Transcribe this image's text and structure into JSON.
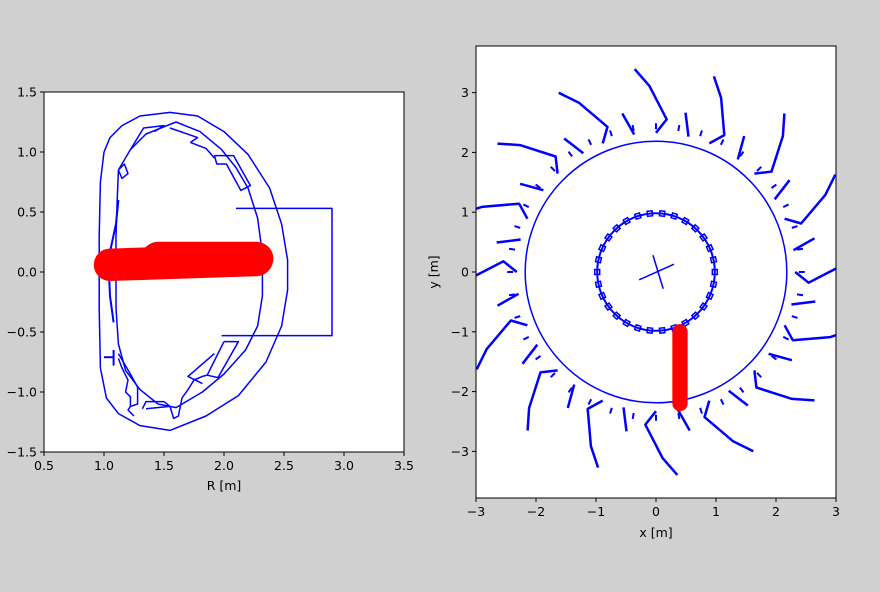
{
  "figure": {
    "background": "#d0d0d0",
    "axes_background": "#ffffff",
    "wall_color": "#0000ff",
    "beam_color": "#ff0000"
  },
  "chart_data": [
    {
      "type": "line",
      "view": "poloidal-cross-section",
      "xlabel": "R [m]",
      "ylabel": "",
      "xlim": [
        0.5,
        3.5
      ],
      "ylim": [
        -1.5,
        1.5
      ],
      "xticks": [
        "0.5",
        "1.0",
        "1.5",
        "2.0",
        "2.5",
        "3.0",
        "3.5"
      ],
      "yticks": [
        "1.5",
        "1.0",
        "0.5",
        "0.0",
        "−0.5",
        "−1.0",
        "−1.5"
      ],
      "xtick_values": [
        0.5,
        1.0,
        1.5,
        2.0,
        2.5,
        3.0,
        3.5
      ],
      "ytick_values": [
        1.5,
        1.0,
        0.5,
        0.0,
        -0.5,
        -1.0,
        -1.5
      ],
      "series": [
        {
          "points": [
            [
              1.0,
              1.0
            ],
            [
              1.05,
              1.12
            ],
            [
              1.15,
              1.22
            ],
            [
              1.3,
              1.3
            ],
            [
              1.55,
              1.33
            ],
            [
              1.78,
              1.3
            ],
            [
              2.0,
              1.17
            ],
            [
              2.2,
              0.98
            ],
            [
              2.38,
              0.7
            ],
            [
              2.48,
              0.4
            ],
            [
              2.53,
              0.1
            ],
            [
              2.53,
              -0.15
            ],
            [
              2.48,
              -0.45
            ],
            [
              2.35,
              -0.75
            ],
            [
              2.12,
              -1.03
            ],
            [
              1.85,
              -1.2
            ],
            [
              1.55,
              -1.32
            ],
            [
              1.3,
              -1.28
            ],
            [
              1.12,
              -1.18
            ],
            [
              1.02,
              -1.05
            ],
            [
              0.97,
              -0.8
            ],
            [
              0.96,
              -0.3
            ],
            [
              0.96,
              0.3
            ],
            [
              0.97,
              0.75
            ],
            [
              1.0,
              1.0
            ]
          ],
          "width": 1.5
        },
        {
          "points": [
            [
              1.12,
              0.85
            ],
            [
              1.22,
              1.02
            ],
            [
              1.35,
              1.15
            ],
            [
              1.6,
              1.25
            ],
            [
              1.8,
              1.17
            ],
            [
              1.98,
              1.02
            ],
            [
              2.1,
              0.87
            ],
            [
              2.2,
              0.7
            ],
            [
              2.28,
              0.45
            ],
            [
              2.32,
              0.15
            ],
            [
              2.32,
              -0.2
            ],
            [
              2.28,
              -0.45
            ],
            [
              2.18,
              -0.65
            ],
            [
              2.0,
              -0.85
            ],
            [
              1.82,
              -1.0
            ],
            [
              1.6,
              -1.13
            ],
            [
              1.45,
              -1.1
            ],
            [
              1.3,
              -0.98
            ],
            [
              1.18,
              -0.82
            ],
            [
              1.12,
              -0.6
            ],
            [
              1.1,
              -0.3
            ],
            [
              1.1,
              0.3
            ],
            [
              1.11,
              0.6
            ],
            [
              1.12,
              0.85
            ]
          ],
          "width": 1.5
        },
        {
          "points": [
            [
              2.1,
              0.53
            ],
            [
              2.9,
              0.53
            ],
            [
              2.9,
              -0.53
            ],
            [
              1.98,
              -0.53
            ]
          ],
          "width": 1.5
        },
        {
          "points": [
            [
              1.92,
              0.97
            ],
            [
              2.08,
              0.97
            ],
            [
              2.22,
              0.72
            ],
            [
              2.14,
              0.68
            ],
            [
              2.02,
              0.9
            ],
            [
              1.94,
              0.9
            ],
            [
              1.92,
              0.97
            ]
          ],
          "width": 1.5
        },
        {
          "points": [
            [
              1.72,
              1.08
            ],
            [
              1.85,
              1.03
            ],
            [
              1.92,
              0.95
            ]
          ],
          "width": 1.5
        },
        {
          "points": [
            [
              1.02,
              0.03
            ],
            [
              1.1,
              0.4
            ],
            [
              1.12,
              0.6
            ]
          ],
          "width": 2.0
        },
        {
          "points": [
            [
              1.08,
              -0.42
            ],
            [
              1.05,
              -0.2
            ],
            [
              1.04,
              0.02
            ]
          ],
          "width": 2.0
        },
        {
          "points": [
            [
              1.12,
              0.85
            ],
            [
              1.15,
              0.78
            ],
            [
              1.2,
              0.82
            ],
            [
              1.17,
              0.9
            ],
            [
              1.12,
              0.85
            ]
          ],
          "width": 1.5
        },
        {
          "points": [
            [
              1.22,
              1.02
            ],
            [
              1.33,
              1.2
            ],
            [
              1.5,
              1.22
            ],
            [
              1.42,
              1.17
            ]
          ],
          "width": 1.5
        },
        {
          "points": [
            [
              1.55,
              1.2
            ],
            [
              1.78,
              1.12
            ],
            [
              1.72,
              1.08
            ]
          ],
          "width": 1.5
        },
        {
          "points": [
            [
              2.0,
              -0.58
            ],
            [
              2.12,
              -0.58
            ],
            [
              1.95,
              -0.88
            ],
            [
              1.86,
              -0.86
            ],
            [
              2.0,
              -0.58
            ]
          ],
          "width": 1.5
        },
        {
          "points": [
            [
              1.82,
              -0.93
            ],
            [
              1.7,
              -0.87
            ],
            [
              1.92,
              -0.68
            ]
          ],
          "width": 1.5
        },
        {
          "points": [
            [
              1.0,
              -0.71
            ],
            [
              1.08,
              -0.71
            ]
          ],
          "width": 2.0
        },
        {
          "points": [
            [
              1.08,
              -0.65
            ],
            [
              1.08,
              -0.78
            ]
          ],
          "width": 2.0
        },
        {
          "points": [
            [
              1.12,
              -0.68
            ],
            [
              1.22,
              -0.85
            ],
            [
              1.28,
              -0.96
            ],
            [
              1.28,
              -1.1
            ],
            [
              1.22,
              -1.12
            ],
            [
              1.22,
              -1.04
            ],
            [
              1.18,
              -1.0
            ],
            [
              1.2,
              -0.9
            ],
            [
              1.15,
              -0.8
            ],
            [
              1.12,
              -0.72
            ]
          ],
          "width": 1.5
        },
        {
          "points": [
            [
              1.22,
              -1.12
            ],
            [
              1.2,
              -1.15
            ],
            [
              1.25,
              -1.2
            ]
          ],
          "width": 1.5
        },
        {
          "points": [
            [
              1.32,
              -1.14
            ],
            [
              1.35,
              -1.08
            ],
            [
              1.5,
              -1.08
            ],
            [
              1.55,
              -1.12
            ],
            [
              1.35,
              -1.14
            ]
          ],
          "width": 1.5
        },
        {
          "points": [
            [
              1.55,
              -1.12
            ],
            [
              1.58,
              -1.22
            ],
            [
              1.62,
              -1.2
            ],
            [
              1.65,
              -1.05
            ],
            [
              1.7,
              -0.98
            ],
            [
              1.75,
              -0.9
            ],
            [
              1.82,
              -0.87
            ],
            [
              1.86,
              -0.86
            ]
          ],
          "width": 1.5
        }
      ],
      "beam": {
        "x_start": 1.05,
        "x_end": 2.27,
        "y": 0.09,
        "y_start": 0.06,
        "y_end": 0.1,
        "thickness": 0.27
      }
    },
    {
      "type": "line",
      "view": "top-down",
      "xlabel": "x [m]",
      "ylabel": "y [m]",
      "xlim": [
        -3.0,
        3.0
      ],
      "ylim": [
        -3.78,
        3.78
      ],
      "xticks": [
        "−3",
        "−2",
        "−1",
        "0",
        "1",
        "2",
        "3"
      ],
      "yticks": [
        "3",
        "2",
        "1",
        "0",
        "−1",
        "−2",
        "−3"
      ],
      "xtick_values": [
        -3,
        -2,
        -1,
        0,
        1,
        2,
        3
      ],
      "ytick_values": [
        3,
        2,
        1,
        0,
        -1,
        -2,
        -3
      ],
      "circles": [
        {
          "r": 2.18,
          "width": 1.5
        },
        {
          "r": 0.98,
          "width": 2.0
        }
      ],
      "cross": [
        {
          "points": [
            [
              -0.28,
              -0.13
            ],
            [
              0.3,
              0.13
            ]
          ],
          "width": 1.5
        },
        {
          "points": [
            [
              -0.05,
              0.28
            ],
            [
              0.12,
              -0.28
            ]
          ],
          "width": 1.5
        }
      ],
      "tile_bands": [
        {
          "r": 2.18,
          "width": 2.0
        },
        {
          "r": 0.98,
          "width": 2.0
        }
      ],
      "rays": [
        0,
        22.5,
        45,
        67.5,
        90,
        112.5,
        135,
        157.5,
        180,
        202.5,
        225,
        247.5,
        270,
        292.5,
        315,
        337.5
      ],
      "port_arms": {
        "inner_r": 2.32,
        "outer_r": 3.4,
        "width": 2.5
      },
      "beam": {
        "x": 0.4,
        "y_start": -1.0,
        "y_end": -2.2,
        "thickness": 0.3
      }
    }
  ]
}
